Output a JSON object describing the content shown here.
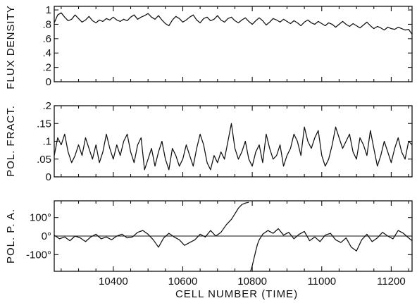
{
  "chart_data": [
    {
      "type": "line",
      "panel": "top",
      "ylabel": "FLUX DENSITY",
      "xlim": [
        10230,
        11260
      ],
      "ylim": [
        0,
        1.05
      ],
      "yticks": [
        0,
        0.2,
        0.4,
        0.6,
        0.8,
        1.0
      ],
      "ytick_labels": [
        "0",
        ".2",
        ".4",
        ".6",
        ".8",
        "1"
      ],
      "series": [
        {
          "x": [
            10230,
            10240,
            10250,
            10260,
            10270,
            10280,
            10290,
            10300,
            10310,
            10320,
            10330,
            10340,
            10350,
            10360,
            10370,
            10380,
            10390,
            10400,
            10410,
            10420,
            10430,
            10440,
            10450,
            10460,
            10470,
            10480,
            10490,
            10500,
            10510,
            10520,
            10530,
            10540,
            10550,
            10560,
            10570,
            10580,
            10590,
            10600,
            10610,
            10620,
            10630,
            10640,
            10650,
            10660,
            10670,
            10680,
            10690,
            10700,
            10710,
            10720,
            10730,
            10740,
            10750,
            10760,
            10770,
            10780,
            10790,
            10800,
            10810,
            10820,
            10830,
            10840,
            10850,
            10860,
            10870,
            10880,
            10890,
            10900,
            10910,
            10920,
            10930,
            10940,
            10950,
            10960,
            10970,
            10980,
            10990,
            11000,
            11010,
            11020,
            11030,
            11040,
            11050,
            11060,
            11070,
            11080,
            11090,
            11100,
            11110,
            11120,
            11130,
            11140,
            11150,
            11160,
            11170,
            11180,
            11190,
            11200,
            11210,
            11220,
            11230,
            11240,
            11250,
            11260
          ],
          "y": [
            0.82,
            0.93,
            0.96,
            0.9,
            0.85,
            0.87,
            0.93,
            0.88,
            0.83,
            0.86,
            0.91,
            0.85,
            0.82,
            0.86,
            0.84,
            0.88,
            0.86,
            0.9,
            0.86,
            0.84,
            0.87,
            0.85,
            0.9,
            0.93,
            0.87,
            0.9,
            0.92,
            0.95,
            0.9,
            0.87,
            0.92,
            0.86,
            0.81,
            0.78,
            0.86,
            0.91,
            0.88,
            0.83,
            0.86,
            0.9,
            0.93,
            0.86,
            0.82,
            0.88,
            0.9,
            0.85,
            0.87,
            0.92,
            0.86,
            0.83,
            0.88,
            0.9,
            0.85,
            0.82,
            0.86,
            0.89,
            0.84,
            0.8,
            0.85,
            0.89,
            0.85,
            0.79,
            0.83,
            0.88,
            0.86,
            0.83,
            0.87,
            0.84,
            0.81,
            0.85,
            0.82,
            0.78,
            0.83,
            0.86,
            0.82,
            0.8,
            0.84,
            0.81,
            0.78,
            0.82,
            0.8,
            0.76,
            0.8,
            0.84,
            0.8,
            0.77,
            0.81,
            0.78,
            0.75,
            0.79,
            0.83,
            0.78,
            0.74,
            0.77,
            0.75,
            0.72,
            0.76,
            0.74,
            0.73,
            0.76,
            0.74,
            0.72,
            0.73,
            0.66
          ]
        }
      ]
    },
    {
      "type": "line",
      "panel": "middle",
      "ylabel": "POL. FRACT.",
      "xlim": [
        10230,
        11260
      ],
      "ylim": [
        0,
        0.2
      ],
      "yticks": [
        0,
        0.05,
        0.1,
        0.15,
        0.2
      ],
      "ytick_labels": [
        "0",
        ".05",
        ".1",
        ".15",
        ".2"
      ],
      "series": [
        {
          "x": [
            10230,
            10240,
            10250,
            10260,
            10270,
            10280,
            10290,
            10300,
            10310,
            10320,
            10330,
            10340,
            10350,
            10360,
            10370,
            10380,
            10390,
            10400,
            10410,
            10420,
            10430,
            10440,
            10450,
            10460,
            10470,
            10480,
            10490,
            10500,
            10510,
            10520,
            10530,
            10540,
            10550,
            10560,
            10570,
            10580,
            10590,
            10600,
            10610,
            10620,
            10630,
            10640,
            10650,
            10660,
            10670,
            10680,
            10690,
            10700,
            10710,
            10720,
            10730,
            10740,
            10750,
            10760,
            10770,
            10780,
            10790,
            10800,
            10810,
            10820,
            10830,
            10840,
            10850,
            10860,
            10870,
            10880,
            10890,
            10900,
            10910,
            10920,
            10930,
            10940,
            10950,
            10960,
            10970,
            10980,
            10990,
            11000,
            11010,
            11020,
            11030,
            11040,
            11050,
            11060,
            11070,
            11080,
            11090,
            11100,
            11110,
            11120,
            11130,
            11140,
            11150,
            11160,
            11170,
            11180,
            11190,
            11200,
            11210,
            11220,
            11230,
            11240,
            11250,
            11260
          ],
          "y": [
            0.06,
            0.11,
            0.09,
            0.12,
            0.07,
            0.04,
            0.06,
            0.09,
            0.06,
            0.11,
            0.08,
            0.05,
            0.09,
            0.04,
            0.07,
            0.12,
            0.08,
            0.05,
            0.09,
            0.06,
            0.1,
            0.12,
            0.07,
            0.04,
            0.09,
            0.11,
            0.02,
            0.05,
            0.08,
            0.03,
            0.07,
            0.1,
            0.05,
            0.02,
            0.08,
            0.06,
            0.03,
            0.05,
            0.09,
            0.06,
            0.03,
            0.08,
            0.12,
            0.09,
            0.04,
            0.02,
            0.06,
            0.04,
            0.07,
            0.05,
            0.1,
            0.15,
            0.08,
            0.05,
            0.07,
            0.1,
            0.05,
            0.03,
            0.07,
            0.09,
            0.04,
            0.12,
            0.08,
            0.05,
            0.06,
            0.09,
            0.03,
            0.06,
            0.08,
            0.12,
            0.1,
            0.06,
            0.14,
            0.1,
            0.08,
            0.11,
            0.13,
            0.06,
            0.03,
            0.05,
            0.09,
            0.14,
            0.11,
            0.08,
            0.1,
            0.12,
            0.07,
            0.05,
            0.11,
            0.09,
            0.06,
            0.13,
            0.08,
            0.03,
            0.06,
            0.1,
            0.07,
            0.04,
            0.08,
            0.11,
            0.07,
            0.05,
            0.1,
            0.09
          ]
        }
      ]
    },
    {
      "type": "line",
      "panel": "bottom",
      "ylabel": "POL. P. A.",
      "xlabel": "CELL NUMBER (TIME)",
      "xlim": [
        10230,
        11260
      ],
      "ylim": [
        -190,
        190
      ],
      "yticks": [
        -100,
        0,
        100
      ],
      "ytick_labels": [
        "-100°",
        "0°",
        "100°"
      ],
      "xticks": [
        10400,
        10600,
        10800,
        11000,
        11200
      ],
      "xtick_labels": [
        "10400",
        "10600",
        "10800",
        "11000",
        "11200"
      ],
      "reference_line": 0,
      "series": [
        {
          "x": [
            10230,
            10245,
            10260,
            10275,
            10290,
            10305,
            10320,
            10335,
            10350,
            10365,
            10380,
            10395,
            10410,
            10425,
            10440,
            10455,
            10470,
            10485,
            10500,
            10515,
            10530,
            10545,
            10560,
            10575,
            10590,
            10605,
            10620,
            10635,
            10650,
            10665,
            10680,
            10695,
            10710,
            10725,
            10740,
            10750,
            10760,
            10770,
            10780,
            10790
          ],
          "y": [
            5,
            -15,
            -5,
            -25,
            0,
            -10,
            -30,
            -5,
            10,
            -15,
            -5,
            -20,
            0,
            10,
            -10,
            -5,
            20,
            30,
            10,
            -20,
            -60,
            -10,
            15,
            -5,
            -20,
            -50,
            -35,
            -20,
            10,
            -5,
            30,
            0,
            20,
            60,
            90,
            120,
            150,
            170,
            178,
            182
          ]
        },
        {
          "x": [
            10795,
            10800,
            10805,
            10810,
            10815,
            10820,
            10830,
            10845,
            10860,
            10875,
            10890,
            10905,
            10920,
            10935,
            10950,
            10965,
            10980,
            10995,
            11010,
            11025,
            11040,
            11055,
            11070,
            11085,
            11100,
            11115,
            11130,
            11145,
            11160,
            11175,
            11190,
            11205,
            11220,
            11235,
            11250,
            11260
          ],
          "y": [
            -190,
            -160,
            -120,
            -80,
            -45,
            -20,
            10,
            30,
            15,
            40,
            5,
            20,
            -15,
            10,
            25,
            -25,
            -5,
            -30,
            5,
            15,
            -20,
            -35,
            -10,
            -60,
            -80,
            -20,
            10,
            -30,
            -10,
            20,
            0,
            -15,
            30,
            15,
            -10,
            -25
          ]
        }
      ]
    }
  ]
}
